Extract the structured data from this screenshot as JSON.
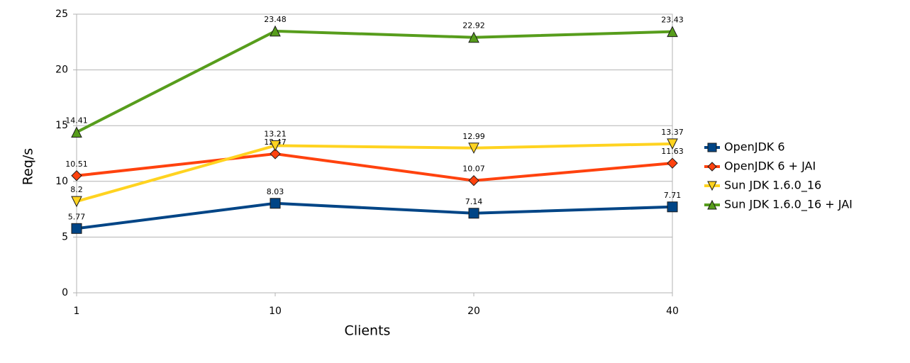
{
  "chart_data": {
    "type": "line",
    "x_label": "Clients",
    "y_label": "Req/s",
    "categories": [
      "1",
      "10",
      "20",
      "40"
    ],
    "ylim": [
      0,
      25
    ],
    "yticks": [
      0,
      5,
      10,
      15,
      20,
      25
    ],
    "grid": true,
    "legend": "right",
    "series": [
      {
        "name": "OpenJDK 6",
        "color": "#004586",
        "marker": "square",
        "values": [
          5.77,
          8.03,
          7.14,
          7.71
        ]
      },
      {
        "name": "OpenJDK 6 + JAI",
        "color": "#ff420e",
        "marker": "diamond",
        "values": [
          10.51,
          12.47,
          10.07,
          11.63
        ]
      },
      {
        "name": "Sun JDK 1.6.0_16",
        "color": "#ffd320",
        "marker": "triangle-down",
        "values": [
          8.2,
          13.21,
          12.99,
          13.37
        ]
      },
      {
        "name": "Sun JDK 1.6.0_16 + JAI",
        "color": "#579d1c",
        "marker": "triangle-up",
        "values": [
          14.41,
          23.48,
          22.92,
          23.43
        ]
      }
    ]
  }
}
